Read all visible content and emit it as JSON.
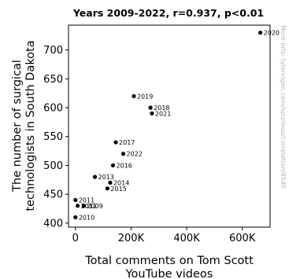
{
  "chart_data": {
    "type": "scatter",
    "title": "Years 2009-2022, r=0.937, p<0.01",
    "xlabel_lines": [
      "Total comments on Tom Scott",
      "YouTube videos"
    ],
    "ylabel_lines": [
      "The number of surgical",
      "technologists in South Dakota"
    ],
    "side_note": "More info: tylervigen.com/spurious/correlation/4540",
    "xlim": [
      -25000,
      700000
    ],
    "ylim": [
      393,
      743
    ],
    "x_ticks": [
      0,
      200000,
      400000,
      600000
    ],
    "x_tick_labels": [
      "0",
      "200K",
      "400K",
      "600K"
    ],
    "y_ticks": [
      400,
      450,
      500,
      550,
      600,
      650,
      700
    ],
    "y_tick_labels": [
      "400",
      "450",
      "500",
      "550",
      "600",
      "650",
      "700"
    ],
    "grid": false,
    "points": [
      {
        "year": "2009",
        "x": 30000,
        "y": 430
      },
      {
        "year": "2010",
        "x": 0,
        "y": 410
      },
      {
        "year": "2011",
        "x": 0,
        "y": 440
      },
      {
        "year": "2012",
        "x": 8000,
        "y": 430
      },
      {
        "year": "2013",
        "x": 70000,
        "y": 480
      },
      {
        "year": "2014",
        "x": 125000,
        "y": 470
      },
      {
        "year": "2015",
        "x": 115000,
        "y": 460
      },
      {
        "year": "2016",
        "x": 135000,
        "y": 500
      },
      {
        "year": "2017",
        "x": 145000,
        "y": 540
      },
      {
        "year": "2018",
        "x": 270000,
        "y": 600
      },
      {
        "year": "2019",
        "x": 210000,
        "y": 620
      },
      {
        "year": "2020",
        "x": 665000,
        "y": 730
      },
      {
        "year": "2021",
        "x": 275000,
        "y": 590
      },
      {
        "year": "2022",
        "x": 172000,
        "y": 520
      }
    ]
  }
}
